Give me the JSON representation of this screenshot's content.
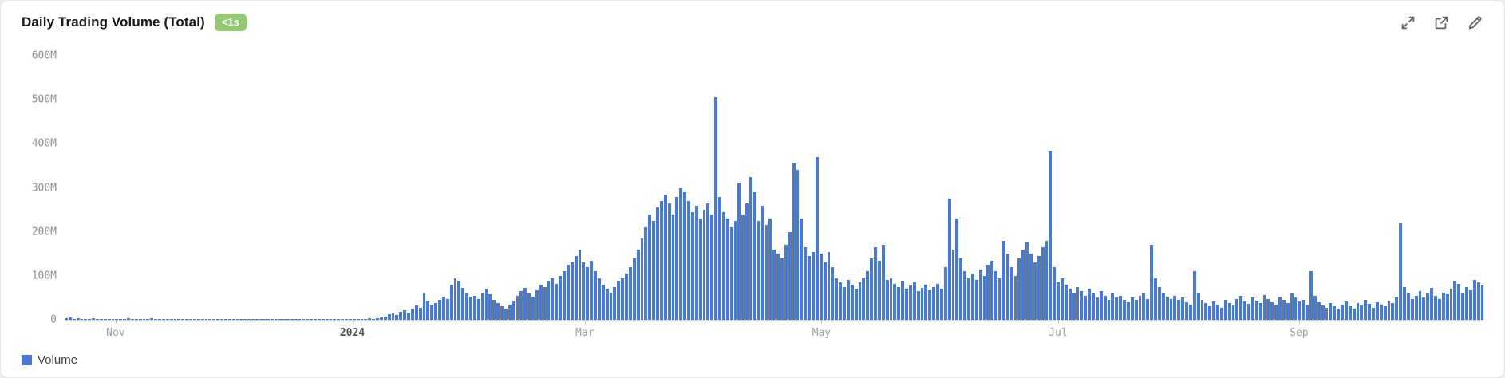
{
  "header": {
    "title": "Daily Trading Volume (Total)",
    "badge": {
      "label": "<1s",
      "bg_color": "#93c973",
      "text_color": "#ffffff"
    }
  },
  "toolbar": {
    "icons": [
      {
        "name": "fullscreen-icon"
      },
      {
        "name": "open-external-icon"
      },
      {
        "name": "edit-icon"
      }
    ]
  },
  "legend": {
    "items": [
      {
        "label": "Volume",
        "color": "#4878d9"
      }
    ]
  },
  "chart_data": {
    "type": "bar",
    "title": "Daily Trading Volume (Total)",
    "values_unit": "millions",
    "ylim_millions": [
      0,
      600
    ],
    "y_ticks": [
      "0",
      "100M",
      "200M",
      "300M",
      "400M",
      "500M",
      "600M"
    ],
    "x_ticks": [
      {
        "label": "Nov",
        "pos": 0.036,
        "bold": false
      },
      {
        "label": "2024",
        "pos": 0.203,
        "bold": true
      },
      {
        "label": "Mar",
        "pos": 0.367,
        "bold": false
      },
      {
        "label": "May",
        "pos": 0.534,
        "bold": false
      },
      {
        "label": "Jul",
        "pos": 0.701,
        "bold": false
      },
      {
        "label": "Sep",
        "pos": 0.871,
        "bold": false
      }
    ],
    "grid": false,
    "legend_position": "bottom-left",
    "series": [
      {
        "name": "Volume",
        "color": "#4878d9",
        "values_millions": [
          3,
          5,
          2,
          3,
          2,
          1,
          2,
          3,
          1,
          2,
          1,
          2,
          1,
          2,
          1,
          2,
          3,
          1,
          2,
          1,
          2,
          1,
          3,
          2,
          1,
          2,
          1,
          1,
          2,
          1,
          2,
          1,
          1,
          2,
          1,
          1,
          2,
          1,
          2,
          1,
          1,
          2,
          1,
          1,
          2,
          1,
          1,
          2,
          1,
          2,
          1,
          1,
          2,
          1,
          1,
          2,
          1,
          2,
          1,
          1,
          2,
          1,
          1,
          2,
          1,
          2,
          1,
          1,
          2,
          1,
          1,
          2,
          1,
          2,
          2,
          2,
          1,
          2,
          3,
          2,
          4,
          6,
          8,
          12,
          15,
          10,
          18,
          22,
          16,
          25,
          32,
          28,
          60,
          42,
          35,
          38,
          45,
          52,
          48,
          80,
          95,
          88,
          72,
          60,
          52,
          55,
          48,
          62,
          70,
          58,
          45,
          38,
          30,
          25,
          35,
          42,
          55,
          65,
          72,
          60,
          52,
          68,
          80,
          75,
          88,
          95,
          82,
          100,
          110,
          125,
          130,
          145,
          160,
          130,
          120,
          135,
          110,
          95,
          80,
          70,
          62,
          75,
          88,
          95,
          105,
          120,
          140,
          160,
          185,
          210,
          240,
          225,
          255,
          270,
          285,
          265,
          240,
          280,
          300,
          290,
          270,
          245,
          260,
          230,
          250,
          265,
          240,
          505,
          280,
          245,
          230,
          210,
          225,
          310,
          240,
          265,
          325,
          290,
          225,
          260,
          215,
          230,
          160,
          150,
          140,
          170,
          200,
          355,
          340,
          230,
          165,
          145,
          155,
          370,
          150,
          130,
          155,
          120,
          95,
          85,
          75,
          90,
          80,
          70,
          85,
          95,
          110,
          140,
          165,
          135,
          170,
          90,
          95,
          82,
          75,
          88,
          70,
          78,
          85,
          65,
          72,
          80,
          68,
          75,
          82,
          70,
          120,
          275,
          160,
          230,
          140,
          110,
          95,
          105,
          90,
          115,
          100,
          125,
          135,
          110,
          95,
          180,
          150,
          120,
          100,
          140,
          160,
          175,
          150,
          130,
          145,
          165,
          180,
          385,
          120,
          85,
          95,
          80,
          70,
          60,
          75,
          65,
          55,
          70,
          60,
          50,
          65,
          55,
          45,
          60,
          50,
          55,
          45,
          40,
          50,
          45,
          55,
          60,
          48,
          170,
          95,
          75,
          60,
          52,
          48,
          55,
          45,
          50,
          40,
          35,
          110,
          60,
          45,
          38,
          30,
          42,
          35,
          28,
          45,
          38,
          32,
          48,
          55,
          42,
          36,
          50,
          44,
          38,
          56,
          48,
          40,
          35,
          52,
          45,
          38,
          60,
          50,
          42,
          45,
          35,
          110,
          55,
          40,
          32,
          28,
          38,
          30,
          25,
          35,
          42,
          30,
          26,
          38,
          32,
          45,
          36,
          28,
          40,
          34,
          30,
          44,
          38,
          50,
          220,
          75,
          60,
          48,
          55,
          65,
          50,
          60,
          72,
          55,
          48,
          62,
          58,
          70,
          88,
          82,
          60,
          75,
          68,
          90,
          85,
          78
        ]
      }
    ]
  }
}
